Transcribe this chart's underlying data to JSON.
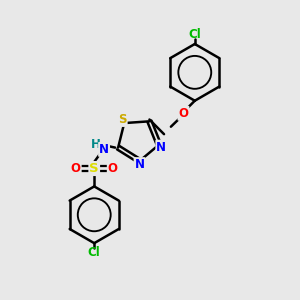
{
  "bg_color": "#e8e8e8",
  "bond_color": "#000000",
  "bond_width": 1.8,
  "colors": {
    "N": "#0000ff",
    "O": "#ff0000",
    "S_thiadiazole": "#ccaa00",
    "S_sulfonyl": "#dddd00",
    "Cl": "#00bb00",
    "H": "#008888"
  },
  "font_size": 8.5,
  "fig_size": [
    3.0,
    3.0
  ],
  "dpi": 100,
  "xlim": [
    0,
    10
  ],
  "ylim": [
    0,
    10
  ]
}
